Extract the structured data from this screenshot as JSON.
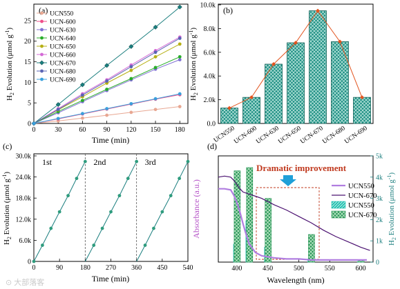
{
  "figure": {
    "watermark": "⊙ 大部落客"
  },
  "chart_data": [
    {
      "panel_label": "(a)",
      "type": "line",
      "xlabel": "Time (min)",
      "ylabel_main": "H",
      "ylabel_sub": "2",
      "ylabel_rest": " Evolution (μmol g",
      "ylabel_sup": "-1",
      "ylabel_end": ")",
      "xlim": [
        0,
        190
      ],
      "ylim": [
        0,
        29
      ],
      "xticks": [
        "0",
        "30",
        "60",
        "90",
        "120",
        "150",
        "180"
      ],
      "yticks": [
        "0",
        "5",
        "10",
        "15",
        "20",
        "25"
      ],
      "x": [
        0,
        30,
        60,
        90,
        120,
        150,
        180
      ],
      "series": [
        {
          "name": "UCN550",
          "color": "#e8a792",
          "marker": "circle",
          "values": [
            0,
            0.6,
            1.3,
            2.0,
            2.7,
            3.4,
            4.1
          ]
        },
        {
          "name": "UCN-600",
          "color": "#ef4e8a",
          "marker": "circle",
          "values": [
            0,
            1.1,
            2.3,
            3.5,
            4.7,
            5.9,
            7.0
          ]
        },
        {
          "name": "UCN-630",
          "color": "#7f6fd3",
          "marker": "circle",
          "values": [
            0,
            2.6,
            5.3,
            8.0,
            10.6,
            13.2,
            15.5
          ]
        },
        {
          "name": "UCN-640",
          "color": "#29ad2a",
          "marker": "circle",
          "values": [
            0,
            2.9,
            5.6,
            8.3,
            10.9,
            13.6,
            16.2
          ]
        },
        {
          "name": "UCN-650",
          "color": "#b6b015",
          "marker": "circle",
          "values": [
            0,
            3.3,
            6.5,
            9.8,
            12.9,
            16.2,
            19.3
          ]
        },
        {
          "name": "UCN-660",
          "color": "#d46ad6",
          "marker": "circle",
          "values": [
            0,
            3.6,
            7.2,
            10.6,
            14.2,
            17.7,
            21.0
          ]
        },
        {
          "name": "UCN-670",
          "color": "#1a7e7e",
          "marker": "diamond",
          "values": [
            0,
            4.6,
            9.4,
            14.1,
            18.7,
            23.4,
            28.3
          ]
        },
        {
          "name": "UCN-680",
          "color": "#5a64b4",
          "marker": "circle",
          "values": [
            0,
            3.4,
            6.9,
            10.3,
            13.8,
            17.3,
            20.7
          ]
        },
        {
          "name": "UCN-690",
          "color": "#3aa0dc",
          "marker": "circle",
          "values": [
            0,
            1.2,
            2.4,
            3.6,
            4.8,
            6.0,
            7.2
          ]
        }
      ]
    },
    {
      "panel_label": "(b)",
      "type": "bar",
      "ylabel_main": "H",
      "ylabel_sub": "2",
      "ylabel_rest": " Evolution (μmol g",
      "ylabel_sup": "-1",
      "ylabel_end": ")",
      "ylim": [
        0,
        10.0
      ],
      "yticks": [
        "0.0",
        "2.0k",
        "4.0k",
        "6.0k",
        "8.0k",
        "10.0k"
      ],
      "categories": [
        "UCN550",
        "UCN-600",
        "UCN-630",
        "UCN-650",
        "UCN-670",
        "UCN-680",
        "UCN-690"
      ],
      "values": [
        1.3,
        2.2,
        5.0,
        6.8,
        9.5,
        6.9,
        2.2
      ],
      "bar_color": "#1e8f83",
      "line_color": "#e2541f"
    },
    {
      "panel_label": "(c)",
      "type": "line",
      "xlabel": "Time (min)",
      "ylabel_main": "H",
      "ylabel_sub": "2",
      "ylabel_rest": " Evolution (μmol g",
      "ylabel_sup": "-1",
      "ylabel_end": ")",
      "xlim": [
        0,
        540
      ],
      "ylim": [
        0,
        30
      ],
      "xticks": [
        "0",
        "90",
        "180",
        "270",
        "360",
        "450",
        "540"
      ],
      "yticks": [
        "0",
        "6.0k",
        "12.0k",
        "18.0k",
        "24.0k",
        "30.0k"
      ],
      "cycle_labels": [
        "1st",
        "2nd",
        "3rd"
      ],
      "cycle_boundaries": [
        180,
        360
      ],
      "color": "#1a7e7e",
      "x": [
        0,
        30,
        60,
        90,
        120,
        150,
        180,
        210,
        240,
        270,
        300,
        330,
        360,
        390,
        420,
        450,
        480,
        510,
        540
      ],
      "values": [
        0,
        4.6,
        9.4,
        14.1,
        18.7,
        23.6,
        28.4,
        4.6,
        9.4,
        14.1,
        18.7,
        23.6,
        28.4,
        4.6,
        9.4,
        14.1,
        18.7,
        23.6,
        28.4
      ],
      "segment_starts": [
        0,
        180,
        360
      ]
    },
    {
      "panel_label": "(d)",
      "type": "line",
      "xlabel": "Wavelength (nm)",
      "ylabel_left": "Absorbance (a.u.)",
      "ylabel_right_main": "H",
      "ylabel_right_sub": "2",
      "ylabel_right_rest": " Evolution (μmol g",
      "ylabel_right_sup": "-1",
      "ylabel_right_end": ")",
      "xlim": [
        370,
        620
      ],
      "y_left_lim": [
        0,
        1
      ],
      "y_right_lim": [
        0,
        5000
      ],
      "xticks": [
        "400",
        "450",
        "500",
        "550",
        "600"
      ],
      "y_right_ticks": [
        "0",
        "1k",
        "2k",
        "3k",
        "4k",
        "5k"
      ],
      "annotation": "Dramatic improvement",
      "annotation_color": "#c0391e",
      "absorbance_series": [
        {
          "name": "UCN550",
          "color": "#b07de0",
          "x": [
            370,
            380,
            390,
            395,
            400,
            405,
            410,
            415,
            420,
            430,
            440,
            450,
            460,
            480,
            500,
            520,
            550,
            580,
            610
          ],
          "y": [
            0.69,
            0.69,
            0.68,
            0.63,
            0.56,
            0.47,
            0.36,
            0.26,
            0.17,
            0.09,
            0.06,
            0.05,
            0.04,
            0.03,
            0.03,
            0.02,
            0.02,
            0.02,
            0.02
          ]
        },
        {
          "name": "UCN-670",
          "color": "#4a1070",
          "x": [
            370,
            380,
            390,
            395,
            400,
            405,
            410,
            415,
            420,
            430,
            440,
            450,
            460,
            480,
            500,
            520,
            540,
            560,
            580,
            600,
            615
          ],
          "y": [
            0.8,
            0.81,
            0.8,
            0.77,
            0.73,
            0.69,
            0.66,
            0.65,
            0.64,
            0.62,
            0.6,
            0.57,
            0.54,
            0.49,
            0.43,
            0.37,
            0.3,
            0.24,
            0.19,
            0.14,
            0.11
          ]
        }
      ],
      "bar_series": [
        {
          "name": "UCN550",
          "color": "#26c2b2",
          "pattern": "hatch",
          "x": [
            400,
            420,
            450,
            520,
            600
          ],
          "values": [
            850,
            1950,
            700,
            150,
            20
          ]
        },
        {
          "name": "UCN-670",
          "color": "#2e9a5b",
          "pattern": "cross",
          "x": [
            400,
            420,
            450,
            520,
            600
          ],
          "values": [
            4300,
            4450,
            3000,
            1300,
            80
          ]
        }
      ]
    }
  ]
}
